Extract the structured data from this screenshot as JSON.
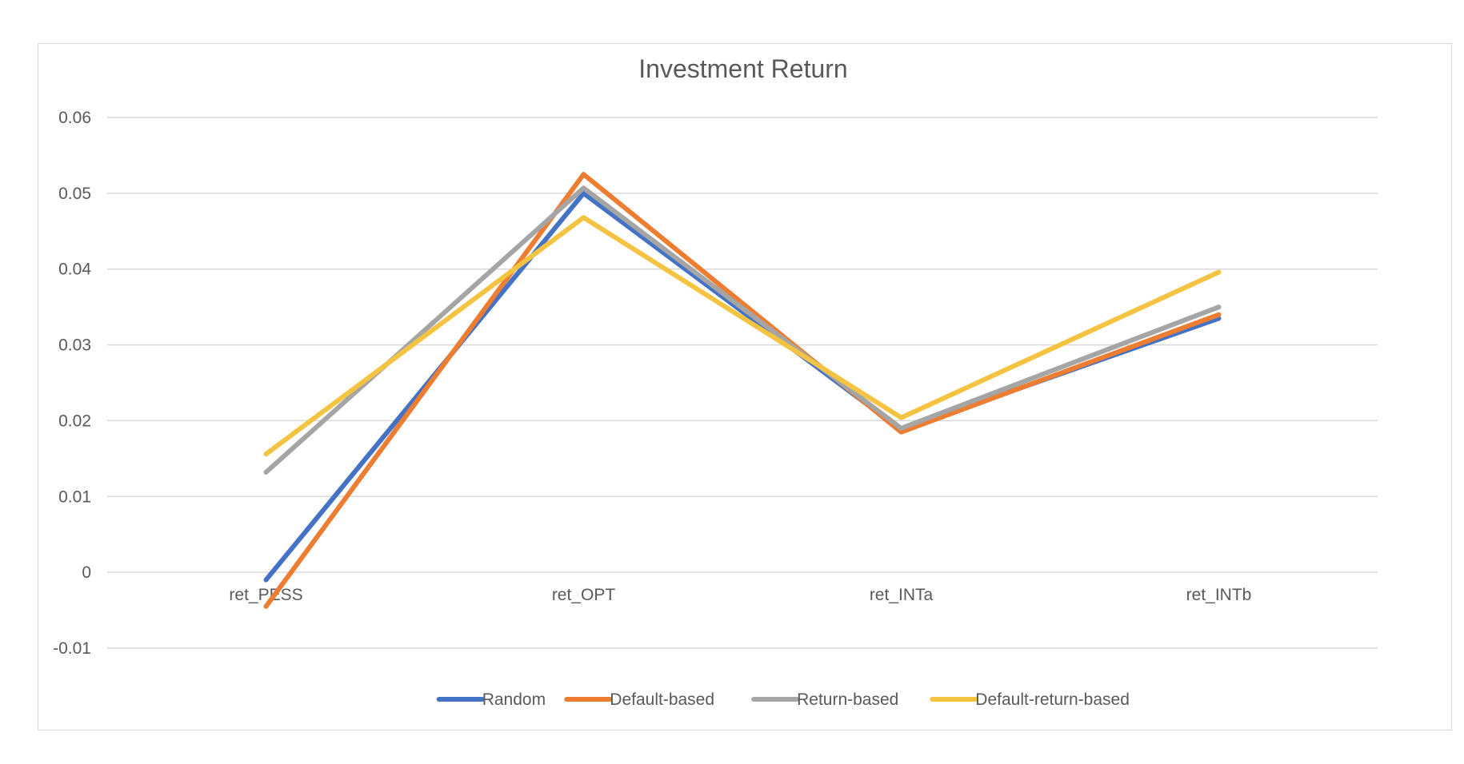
{
  "chart_data": {
    "type": "line",
    "title": "Investment Return",
    "xlabel": "",
    "ylabel": "",
    "categories": [
      "ret_PESS",
      "ret_OPT",
      "ret_INTa",
      "ret_INTb"
    ],
    "ylim": [
      -0.01,
      0.06
    ],
    "yticks": [
      -0.01,
      0,
      0.01,
      0.02,
      0.03,
      0.04,
      0.05,
      0.06
    ],
    "ytick_labels": [
      "-0.01",
      "0",
      "0.01",
      "0.02",
      "0.03",
      "0.04",
      "0.05",
      "0.06"
    ],
    "grid": true,
    "legend_position": "bottom",
    "series": [
      {
        "name": "Random",
        "color": "#4472C4",
        "values": [
          -0.001,
          0.05,
          0.0188,
          0.0335
        ]
      },
      {
        "name": "Default-based",
        "color": "#ED7D31",
        "values": [
          -0.0045,
          0.0525,
          0.0185,
          0.034
        ]
      },
      {
        "name": "Return-based",
        "color": "#A5A5A5",
        "values": [
          0.0132,
          0.0507,
          0.019,
          0.035
        ]
      },
      {
        "name": "Default-return-based",
        "color": "#F5C342",
        "values": [
          0.0156,
          0.0468,
          0.0204,
          0.0396
        ]
      }
    ]
  }
}
